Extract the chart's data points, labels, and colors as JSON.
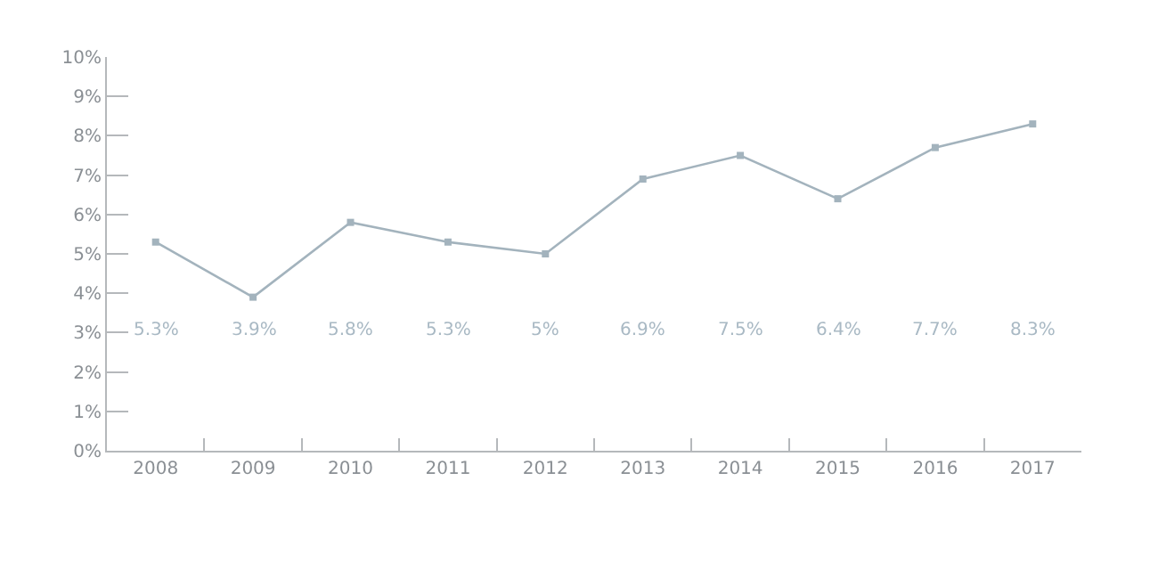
{
  "chart_data": {
    "type": "line",
    "categories": [
      "2008",
      "2009",
      "2010",
      "2011",
      "2012",
      "2013",
      "2014",
      "2015",
      "2016",
      "2017"
    ],
    "series": [
      {
        "color": "#a3b3bd",
        "values": [
          5.3,
          3.9,
          5.8,
          5.3,
          5.0,
          6.9,
          7.5,
          6.4,
          7.7,
          8.3
        ]
      }
    ],
    "value_labels": [
      "5.3%",
      "3.9%",
      "5.8%",
      "5.3%",
      "5%",
      "6.9%",
      "7.5%",
      "6.4%",
      "7.7%",
      "8.3%"
    ],
    "ylim": [
      0,
      10
    ],
    "yticks": [
      {
        "value": 0,
        "label": "0%"
      },
      {
        "value": 1,
        "label": "1%"
      },
      {
        "value": 2,
        "label": "2%"
      },
      {
        "value": 3,
        "label": "3%"
      },
      {
        "value": 4,
        "label": "4%"
      },
      {
        "value": 5,
        "label": "5%"
      },
      {
        "value": 6,
        "label": "6%"
      },
      {
        "value": 7,
        "label": "7%"
      },
      {
        "value": 8,
        "label": "8%"
      },
      {
        "value": 9,
        "label": "9%"
      },
      {
        "value": 10,
        "label": "10%"
      }
    ],
    "marker": "square",
    "line_style": "solid",
    "legend": false
  }
}
